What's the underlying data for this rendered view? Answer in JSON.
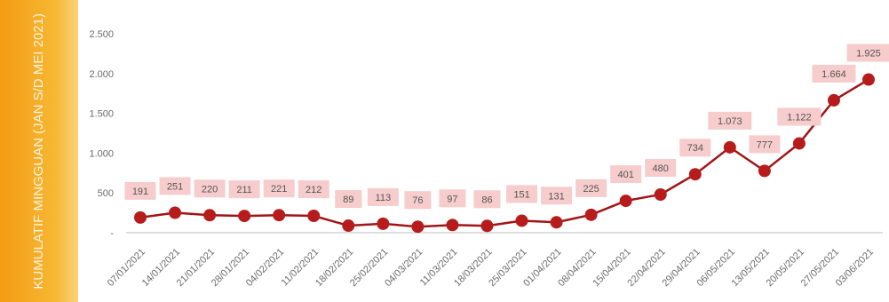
{
  "banner": {
    "text": "KUMULATIF MINGGUAN (JAN S/D MEI 2021)"
  },
  "colors": {
    "banner": "#f39c12",
    "line": "#a11516",
    "marker": "#b71c1c",
    "label_bg": "#f6cccc",
    "axis": "#bdbdbd"
  },
  "chart_data": {
    "type": "line",
    "title": "",
    "xlabel": "",
    "ylabel": "",
    "ylim": [
      0,
      2500
    ],
    "yticks": [
      {
        "value": 0,
        "label": "-"
      },
      {
        "value": 500,
        "label": "500"
      },
      {
        "value": 1000,
        "label": "1.000"
      },
      {
        "value": 1500,
        "label": "1.500"
      },
      {
        "value": 2000,
        "label": "2.000"
      },
      {
        "value": 2500,
        "label": "2.500"
      }
    ],
    "grid": false,
    "legend": "none",
    "categories": [
      "07/01/2021",
      "14/01/2021",
      "21/01/2021",
      "28/01/2021",
      "04/02/2021",
      "11/02/2021",
      "18/02/2021",
      "25/02/2021",
      "04/03/2021",
      "11/03/2021",
      "18/03/2021",
      "25/03/2021",
      "01/04/2021",
      "08/04/2021",
      "15/04/2021",
      "22/04/2021",
      "29/04/2021",
      "06/05/2021",
      "13/05/2021",
      "20/05/2021",
      "27/05/2021",
      "03/06/2021"
    ],
    "values": [
      191,
      251,
      220,
      211,
      221,
      212,
      89,
      113,
      76,
      97,
      86,
      151,
      131,
      225,
      401,
      480,
      734,
      1073,
      777,
      1122,
      1664,
      1925
    ],
    "data_labels": [
      "191",
      "251",
      "220",
      "211",
      "221",
      "212",
      "89",
      "113",
      "76",
      "97",
      "86",
      "151",
      "131",
      "225",
      "401",
      "480",
      "734",
      "1.073",
      "777",
      "1.122",
      "1.664",
      "1.925"
    ]
  }
}
